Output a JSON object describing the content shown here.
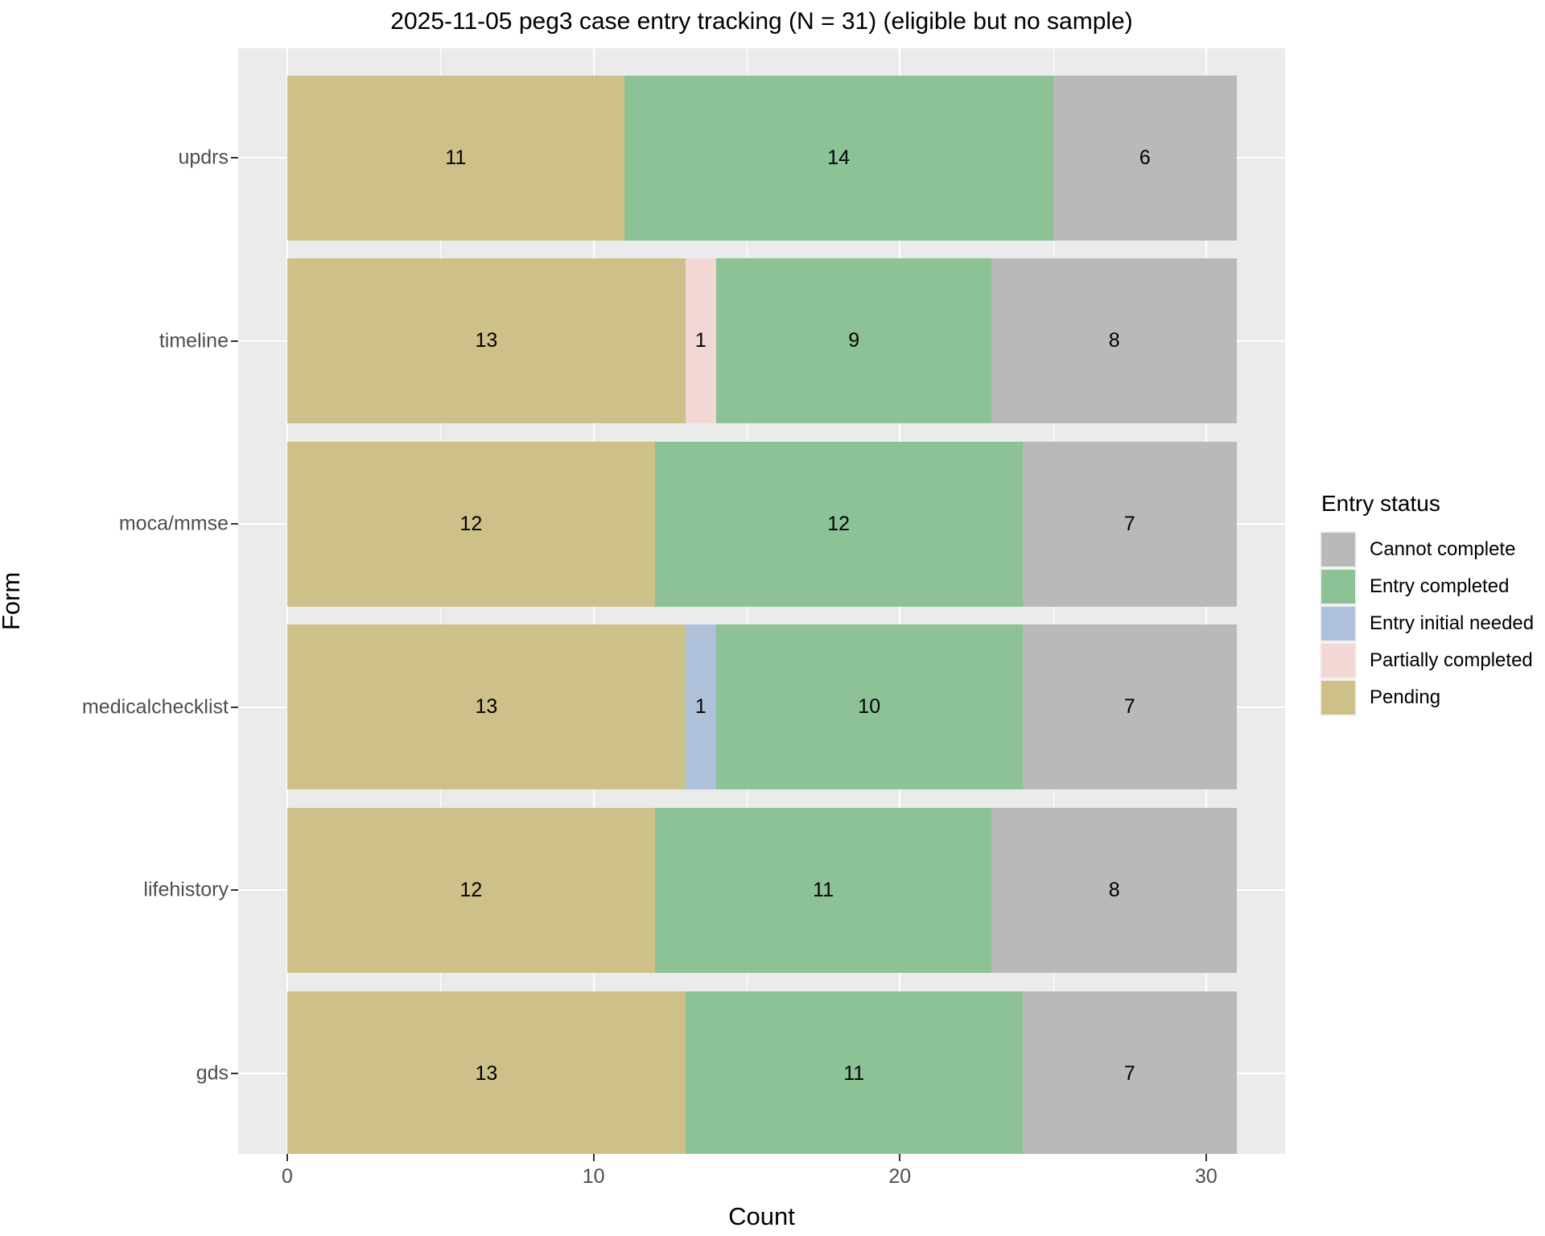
{
  "chart_data": {
    "type": "bar",
    "orientation": "horizontal",
    "stacked": true,
    "title": "2025-11-05 peg3 case entry tracking (N = 31) (eligible but no sample)",
    "xlabel": "Count",
    "ylabel": "Form",
    "xlim": [
      0,
      31
    ],
    "x_major_ticks": [
      0,
      10,
      20,
      30
    ],
    "x_minor_ticks": [
      5,
      15,
      25
    ],
    "grid": true,
    "categories": [
      "updrs",
      "timeline",
      "moca/mmse",
      "medicalchecklist",
      "lifehistory",
      "gds"
    ],
    "series": [
      {
        "name": "Pending",
        "color": "#cdc189",
        "values": [
          11,
          13,
          12,
          13,
          12,
          13
        ]
      },
      {
        "name": "Partially completed",
        "color": "#f2d7d4",
        "values": [
          0,
          1,
          0,
          0,
          0,
          0
        ]
      },
      {
        "name": "Entry initial needed",
        "color": "#aec0da",
        "values": [
          0,
          0,
          0,
          1,
          0,
          0
        ]
      },
      {
        "name": "Entry completed",
        "color": "#8cc295",
        "values": [
          14,
          9,
          12,
          10,
          11,
          11
        ]
      },
      {
        "name": "Cannot complete",
        "color": "#b9b9b9",
        "values": [
          6,
          8,
          7,
          7,
          8,
          7
        ]
      }
    ],
    "legend": {
      "title": "Entry status",
      "position": "right",
      "items": [
        {
          "label": "Cannot complete",
          "color": "#b9b9b9"
        },
        {
          "label": "Entry completed",
          "color": "#8cc295"
        },
        {
          "label": "Entry initial needed",
          "color": "#aec0da"
        },
        {
          "label": "Partially completed",
          "color": "#f2d7d4"
        },
        {
          "label": "Pending",
          "color": "#cdc189"
        }
      ]
    },
    "colors": {
      "panel_background": "#ebebeb",
      "gridline": "#ffffff",
      "tick_mark": "#333333",
      "tick_label": "#4d4d4d",
      "text": "#000000"
    }
  }
}
